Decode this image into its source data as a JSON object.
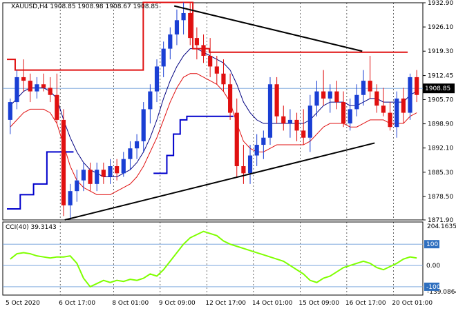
{
  "header": {
    "symbol_line": "XAUUSD,H4  1908.85 1908.98 1908.67 1908.85"
  },
  "indicator": {
    "label": "CCI(40) 39.3143",
    "axis_top": "204.1635",
    "axis_bottom": "-139.0864",
    "levels": [
      "100",
      "0.00",
      "-100"
    ]
  },
  "price_tag": "1908.85",
  "colors": {
    "bull_body": "#1a3fd4",
    "bear_body": "#e01010",
    "bollinger": "#000080",
    "envelope": "#e01010",
    "step_red": "#e01010",
    "step_blue": "#0000cc",
    "trendline": "#000000",
    "cci_line": "#7fff00",
    "price_tag_bg": "#000000",
    "level_100_bg": "#2f6fbf",
    "level_neg100_bg": "#2f6fbf"
  },
  "chart_data": [
    {
      "type": "candlestick",
      "title": "XAUUSD,H4",
      "x_tick_labels": [
        "5 Oct 2020",
        "6 Oct 17:00",
        "8 Oct 01:00",
        "9 Oct 09:00",
        "12 Oct 17:00",
        "14 Oct 01:00",
        "15 Oct 09:00",
        "16 Oct 17:00",
        "20 Oct 01:00"
      ],
      "y_tick_labels": [
        "1932.90",
        "1926.10",
        "1919.30",
        "1912.45",
        "1905.70",
        "1898.90",
        "1892.10",
        "1885.30",
        "1878.50",
        "1871.90"
      ],
      "ylim": [
        1871.9,
        1932.9
      ],
      "grid": "dotted vertical",
      "candles": [
        [
          1900,
          1906,
          1896,
          1905
        ],
        [
          1905,
          1914,
          1903,
          1912
        ],
        [
          1912,
          1917,
          1908,
          1911
        ],
        [
          1911,
          1913,
          1905,
          1908
        ],
        [
          1908,
          1912,
          1906,
          1910
        ],
        [
          1910,
          1913,
          1908,
          1909
        ],
        [
          1909,
          1912,
          1905,
          1907
        ],
        [
          1907,
          1913,
          1899,
          1900
        ],
        [
          1900,
          1903,
          1873,
          1876
        ],
        [
          1876,
          1882,
          1872,
          1880
        ],
        [
          1880,
          1886,
          1877,
          1883
        ],
        [
          1883,
          1888,
          1880,
          1886
        ],
        [
          1886,
          1888,
          1880,
          1882
        ],
        [
          1882,
          1888,
          1880,
          1886
        ],
        [
          1886,
          1888,
          1882,
          1884
        ],
        [
          1884,
          1889,
          1882,
          1887
        ],
        [
          1887,
          1889,
          1883,
          1885
        ],
        [
          1885,
          1891,
          1884,
          1889
        ],
        [
          1889,
          1894,
          1886,
          1892
        ],
        [
          1892,
          1896,
          1889,
          1894
        ],
        [
          1894,
          1905,
          1891,
          1903
        ],
        [
          1903,
          1910,
          1899,
          1908
        ],
        [
          1908,
          1917,
          1905,
          1915
        ],
        [
          1915,
          1922,
          1912,
          1920
        ],
        [
          1920,
          1926,
          1917,
          1924
        ],
        [
          1924,
          1931,
          1921,
          1928
        ],
        [
          1928,
          1933,
          1924,
          1930
        ],
        [
          1930,
          1933,
          1921,
          1923
        ],
        [
          1923,
          1926,
          1917,
          1921
        ],
        [
          1921,
          1924,
          1916,
          1918
        ],
        [
          1918,
          1923,
          1912,
          1915
        ],
        [
          1915,
          1918,
          1910,
          1913
        ],
        [
          1913,
          1917,
          1908,
          1910
        ],
        [
          1910,
          1913,
          1900,
          1902
        ],
        [
          1902,
          1906,
          1884,
          1887
        ],
        [
          1887,
          1893,
          1882,
          1885
        ],
        [
          1885,
          1893,
          1882,
          1890
        ],
        [
          1890,
          1896,
          1887,
          1893
        ],
        [
          1893,
          1897,
          1889,
          1895
        ],
        [
          1895,
          1912,
          1893,
          1910
        ],
        [
          1910,
          1912,
          1899,
          1901
        ],
        [
          1901,
          1904,
          1897,
          1899
        ],
        [
          1899,
          1903,
          1895,
          1900
        ],
        [
          1900,
          1902,
          1894,
          1897
        ],
        [
          1897,
          1903,
          1893,
          1895
        ],
        [
          1895,
          1907,
          1891,
          1904
        ],
        [
          1904,
          1911,
          1901,
          1908
        ],
        [
          1908,
          1914,
          1904,
          1906
        ],
        [
          1906,
          1910,
          1902,
          1908
        ],
        [
          1908,
          1911,
          1903,
          1905
        ],
        [
          1905,
          1908,
          1898,
          1899
        ],
        [
          1899,
          1906,
          1897,
          1903
        ],
        [
          1903,
          1910,
          1901,
          1907
        ],
        [
          1907,
          1914,
          1904,
          1911
        ],
        [
          1911,
          1918,
          1906,
          1908
        ],
        [
          1908,
          1910,
          1902,
          1904
        ],
        [
          1904,
          1909,
          1901,
          1902
        ],
        [
          1902,
          1905,
          1897,
          1898
        ],
        [
          1898,
          1908,
          1895,
          1906
        ],
        [
          1906,
          1909,
          1899,
          1902
        ],
        [
          1902,
          1913,
          1900,
          1912
        ],
        [
          1912,
          1914,
          1905,
          1907
        ]
      ],
      "overlays": {
        "bollinger_mid": [
          1904,
          1906,
          1908,
          1909,
          1909,
          1909,
          1908,
          1906,
          1900,
          1895,
          1891,
          1888,
          1886,
          1885,
          1884,
          1884,
          1884,
          1885,
          1886,
          1888,
          1891,
          1895,
          1900,
          1906,
          1911,
          1915,
          1918,
          1920,
          1920,
          1919,
          1918,
          1917,
          1916,
          1914,
          1910,
          1905,
          1902,
          1900,
          1899,
          1899,
          1899,
          1899,
          1899,
          1899,
          1899,
          1900,
          1902,
          1904,
          1905,
          1905,
          1905,
          1904,
          1904,
          1905,
          1906,
          1906,
          1905,
          1905,
          1905,
          1905,
          1907,
          1908
        ],
        "envelope_lower": [
          1898,
          1900,
          1902,
          1903,
          1903,
          1903,
          1902,
          1899,
          1893,
          1887,
          1883,
          1881,
          1880,
          1879,
          1879,
          1879,
          1880,
          1881,
          1882,
          1884,
          1887,
          1891,
          1895,
          1900,
          1905,
          1909,
          1912,
          1913,
          1913,
          1912,
          1911,
          1910,
          1908,
          1905,
          1899,
          1894,
          1892,
          1891,
          1891,
          1892,
          1893,
          1893,
          1893,
          1893,
          1893,
          1894,
          1896,
          1898,
          1899,
          1899,
          1899,
          1898,
          1898,
          1899,
          1900,
          1900,
          1900,
          1899,
          1899,
          1899,
          1901,
          1902
        ],
        "step_red_upper": {
          "levels": [
            1917,
            1914,
            1914,
            1914,
            1933,
            1920,
            1919,
            1919
          ],
          "segments_end": [
            0.02,
            0.03,
            0.2,
            0.33,
            0.45,
            0.49,
            0.5,
            0.97
          ]
        },
        "step_blue_lower": [
          1875,
          1875,
          1879,
          1879,
          1882,
          1882,
          1891,
          1891,
          1891,
          1891,
          null,
          null,
          null,
          null,
          null,
          null,
          null,
          null,
          null,
          null,
          null,
          null,
          1885,
          1885,
          1890,
          1896,
          1900,
          1901,
          1901,
          1901,
          1901,
          1901,
          1901,
          1901
        ]
      },
      "trendlines": [
        {
          "from": [
            0.405,
            1932
          ],
          "to": [
            0.86,
            1919.3
          ]
        },
        {
          "from": [
            0.14,
            1871.9
          ],
          "to": [
            0.89,
            1893.5
          ]
        }
      ],
      "last_price": 1908.85
    },
    {
      "type": "line",
      "title": "CCI(40) 39.3143",
      "ylim": [
        -139.0864,
        204.1635
      ],
      "levels": [
        100,
        0,
        -100
      ],
      "series": [
        {
          "values": [
            30,
            55,
            60,
            55,
            45,
            40,
            35,
            40,
            40,
            45,
            10,
            -60,
            -100,
            -85,
            -70,
            -80,
            -70,
            -75,
            -65,
            -70,
            -60,
            -40,
            -50,
            -20,
            20,
            60,
            100,
            130,
            145,
            160,
            150,
            140,
            115,
            100,
            90,
            80,
            70,
            60,
            50,
            40,
            30,
            20,
            0,
            -20,
            -40,
            -70,
            -80,
            -60,
            -50,
            -30,
            -10,
            0,
            10,
            20,
            10,
            -10,
            -20,
            -5,
            10,
            30,
            40,
            35
          ]
        }
      ]
    }
  ]
}
